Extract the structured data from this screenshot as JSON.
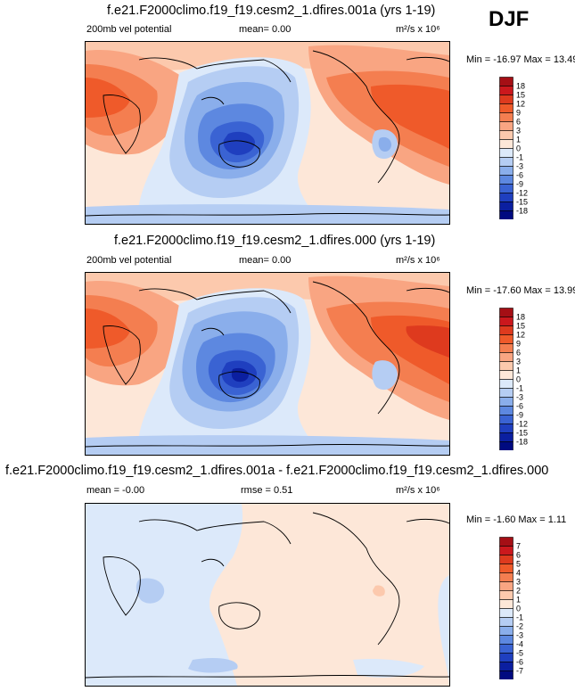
{
  "season": "DJF",
  "units_text": "m²/s x 10⁶",
  "panels": [
    {
      "title": "f.e21.F2000climo.f19_f19.cesm2_1.dfires.001a (yrs 1-19)",
      "left_label": "200mb vel potential",
      "center_label": "mean=   0.00",
      "range_label": "Min = -16.97 Max =  13.49"
    },
    {
      "title": "f.e21.F2000climo.f19_f19.cesm2_1.dfires.000 (yrs 1-19)",
      "left_label": "200mb vel potential",
      "center_label": "mean=   0.00",
      "range_label": "Min = -17.60 Max =  13.99"
    },
    {
      "title": "f.e21.F2000climo.f19_f19.cesm2_1.dfires.001a - f.e21.F2000climo.f19_f19.cesm2_1.dfires.000",
      "left_label": "mean =  -0.00",
      "center_label": "rmse =   0.51",
      "range_label": "Min =  -1.60 Max =   1.11"
    }
  ],
  "chart_data": [
    {
      "type": "heatmap",
      "title": "f.e21.F2000climo.f19_f19.cesm2_1.dfires.001a (yrs 1-19)",
      "variable": "200mb vel potential",
      "mean": 0.0,
      "min": -16.97,
      "max": 13.49,
      "levels": [
        18,
        15,
        12,
        9,
        6,
        3,
        1,
        0,
        -1,
        -3,
        -6,
        -9,
        -12,
        -15,
        -18
      ],
      "colors": [
        "#a50f15",
        "#cb181d",
        "#de3a1e",
        "#ef5a2a",
        "#f47e50",
        "#f9a582",
        "#fcc9ad",
        "#fde7d8",
        "#dce9fa",
        "#b5cdf3",
        "#8aaeeb",
        "#5d88e0",
        "#3a63d3",
        "#1f3fbf",
        "#0b1fa0",
        "#000a80"
      ]
    },
    {
      "type": "heatmap",
      "title": "f.e21.F2000climo.f19_f19.cesm2_1.dfires.000 (yrs 1-19)",
      "variable": "200mb vel potential",
      "mean": 0.0,
      "min": -17.6,
      "max": 13.99,
      "levels": [
        18,
        15,
        12,
        9,
        6,
        3,
        1,
        0,
        -1,
        -3,
        -6,
        -9,
        -12,
        -15,
        -18
      ],
      "colors": [
        "#a50f15",
        "#cb181d",
        "#de3a1e",
        "#ef5a2a",
        "#f47e50",
        "#f9a582",
        "#fcc9ad",
        "#fde7d8",
        "#dce9fa",
        "#b5cdf3",
        "#8aaeeb",
        "#5d88e0",
        "#3a63d3",
        "#1f3fbf",
        "#0b1fa0",
        "#000a80"
      ]
    },
    {
      "type": "heatmap",
      "title": "f.e21.F2000climo.f19_f19.cesm2_1.dfires.001a - f.e21.F2000climo.f19_f19.cesm2_1.dfires.000",
      "mean": -0.0,
      "rmse": 0.51,
      "min": -1.6,
      "max": 1.11,
      "levels": [
        7,
        6,
        5,
        4,
        3,
        2,
        1,
        0,
        -1,
        -2,
        -3,
        -4,
        -5,
        -6,
        -7
      ],
      "colors": [
        "#a50f15",
        "#cb181d",
        "#de3a1e",
        "#ef5a2a",
        "#f47e50",
        "#f9a582",
        "#fcc9ad",
        "#fde7d8",
        "#dce9fa",
        "#b5cdf3",
        "#8aaeeb",
        "#5d88e0",
        "#3a63d3",
        "#1f3fbf",
        "#0b1fa0",
        "#000a80"
      ]
    }
  ]
}
